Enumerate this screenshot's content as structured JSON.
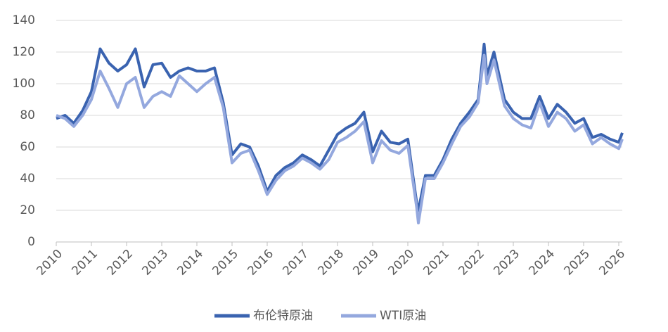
{
  "chart_data": {
    "type": "line",
    "x": [
      2010,
      2010.25,
      2010.5,
      2010.75,
      2011,
      2011.25,
      2011.5,
      2011.75,
      2012,
      2012.25,
      2012.5,
      2012.75,
      2013,
      2013.25,
      2013.5,
      2013.75,
      2014,
      2014.25,
      2014.5,
      2014.75,
      2015,
      2015.25,
      2015.5,
      2015.75,
      2016,
      2016.25,
      2016.5,
      2016.75,
      2017,
      2017.25,
      2017.5,
      2017.75,
      2018,
      2018.25,
      2018.5,
      2018.75,
      2019,
      2019.25,
      2019.5,
      2019.75,
      2020,
      2020.25,
      2020.3,
      2020.5,
      2020.75,
      2021,
      2021.25,
      2021.5,
      2021.75,
      2022,
      2022.17,
      2022.25,
      2022.45,
      2022.75,
      2023,
      2023.25,
      2023.5,
      2023.75,
      2024,
      2024.25,
      2024.5,
      2024.75,
      2025,
      2025.25,
      2025.5,
      2025.75,
      2026,
      2026.1
    ],
    "series": [
      {
        "name": "布伦特原油",
        "color": "#3a63b0",
        "values": [
          78,
          80,
          75,
          83,
          95,
          122,
          113,
          108,
          112,
          122,
          98,
          112,
          113,
          104,
          108,
          110,
          108,
          108,
          110,
          88,
          55,
          62,
          60,
          48,
          32,
          42,
          47,
          50,
          55,
          52,
          48,
          58,
          68,
          72,
          75,
          82,
          57,
          70,
          63,
          62,
          65,
          25,
          20,
          42,
          42,
          52,
          65,
          75,
          82,
          90,
          125,
          105,
          120,
          90,
          82,
          78,
          78,
          92,
          78,
          87,
          82,
          75,
          78,
          66,
          68,
          65,
          63,
          69
        ]
      },
      {
        "name": "WTI原油",
        "color": "#94a8de",
        "values": [
          80,
          78,
          73,
          80,
          90,
          108,
          97,
          85,
          100,
          104,
          85,
          92,
          95,
          92,
          105,
          100,
          95,
          100,
          104,
          85,
          50,
          56,
          58,
          45,
          30,
          39,
          45,
          48,
          53,
          50,
          46,
          52,
          63,
          66,
          70,
          76,
          50,
          64,
          58,
          56,
          61,
          22,
          12,
          40,
          40,
          50,
          62,
          73,
          79,
          88,
          118,
          100,
          115,
          86,
          78,
          74,
          72,
          88,
          73,
          82,
          78,
          70,
          74,
          62,
          66,
          62,
          59,
          65
        ]
      }
    ],
    "xlim": [
      2010,
      2026.1
    ],
    "xticks": [
      2010,
      2011,
      2012,
      2013,
      2014,
      2015,
      2016,
      2017,
      2018,
      2019,
      2020,
      2021,
      2022,
      2023,
      2024,
      2025,
      2026
    ],
    "ylim": [
      0,
      140
    ],
    "yticks": [
      0,
      20,
      40,
      60,
      80,
      100,
      120,
      140
    ],
    "grid": true,
    "legend": "bottom"
  }
}
